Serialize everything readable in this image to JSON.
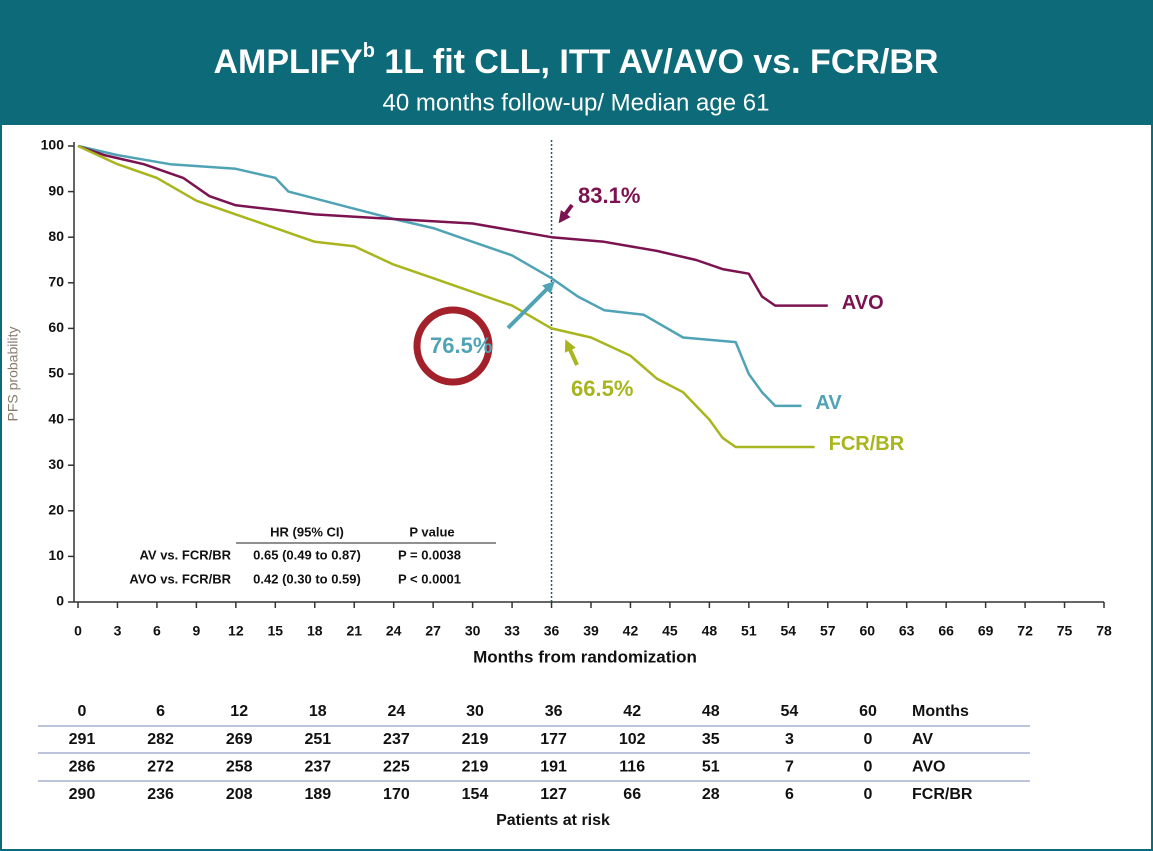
{
  "chart_data": {
    "type": "line",
    "title": "AMPLIFY",
    "title_superscript": "b",
    "title_rest": " 1L fit CLL, ITT AV/AVO vs. FCR/BR",
    "subtitle": "40 months follow-up/ Median age 61",
    "x_label": "Months from randomization",
    "y_label": "PFS probability",
    "xlim": [
      0,
      78
    ],
    "xticks": [
      0,
      3,
      6,
      9,
      12,
      15,
      18,
      21,
      24,
      27,
      30,
      33,
      36,
      39,
      42,
      45,
      48,
      51,
      54,
      57,
      60,
      63,
      66,
      69,
      72,
      75,
      78
    ],
    "ylim": [
      0,
      100
    ],
    "yticks": [
      0,
      10,
      20,
      30,
      40,
      50,
      60,
      70,
      80,
      90,
      100
    ],
    "reference_x": 36,
    "series": [
      {
        "name": "AV",
        "color": "#4fa3b5",
        "x": [
          0,
          3,
          7,
          12,
          15,
          16,
          20,
          24,
          27,
          30,
          33,
          36,
          38,
          40,
          43,
          46,
          50,
          51,
          52,
          53,
          55
        ],
        "values": [
          100,
          98,
          96,
          95,
          93,
          90,
          87,
          84,
          82,
          79,
          76,
          71,
          67,
          64,
          63,
          58,
          57,
          50,
          46,
          43,
          43
        ]
      },
      {
        "name": "AVO",
        "color": "#7b1350",
        "x": [
          0,
          2,
          5,
          8,
          10,
          12,
          15,
          18,
          24,
          30,
          36,
          40,
          44,
          47,
          49,
          51,
          52,
          53,
          57
        ],
        "values": [
          100,
          98,
          96,
          93,
          89,
          87,
          86,
          85,
          84,
          83,
          80,
          79,
          77,
          75,
          73,
          72,
          67,
          65,
          65
        ]
      },
      {
        "name": "FCR/BR",
        "color": "#a8b51d",
        "x": [
          0,
          3,
          6,
          9,
          12,
          15,
          18,
          21,
          24,
          27,
          30,
          33,
          36,
          39,
          42,
          44,
          46,
          48,
          49,
          50,
          56
        ],
        "values": [
          100,
          96,
          93,
          88,
          85,
          82,
          79,
          78,
          74,
          71,
          68,
          65,
          60,
          58,
          54,
          49,
          46,
          40,
          36,
          34,
          34
        ]
      }
    ],
    "annotations": [
      "83.1%",
      "76.5%",
      "66.5%"
    ],
    "hr_table": {
      "columns": [
        "HR (95% CI)",
        "P value"
      ],
      "rows": [
        {
          "label": "AV vs. FCR/BR",
          "hr": "0.65 (0.49 to 0.87)",
          "p": "P = 0.0038"
        },
        {
          "label": "AVO vs. FCR/BR",
          "hr": "0.42 (0.30 to 0.59)",
          "p": "P < 0.0001"
        }
      ]
    },
    "risk_table": {
      "title": "Patients at risk",
      "months_label": "Months",
      "months": [
        0,
        6,
        12,
        18,
        24,
        30,
        36,
        42,
        48,
        54,
        60
      ],
      "rows": [
        [
          291,
          282,
          269,
          251,
          237,
          219,
          177,
          102,
          35,
          3,
          0
        ],
        [
          286,
          272,
          258,
          237,
          225,
          219,
          191,
          116,
          51,
          7,
          0
        ],
        [
          290,
          236,
          208,
          189,
          170,
          154,
          127,
          66,
          28,
          6,
          0
        ]
      ]
    }
  }
}
